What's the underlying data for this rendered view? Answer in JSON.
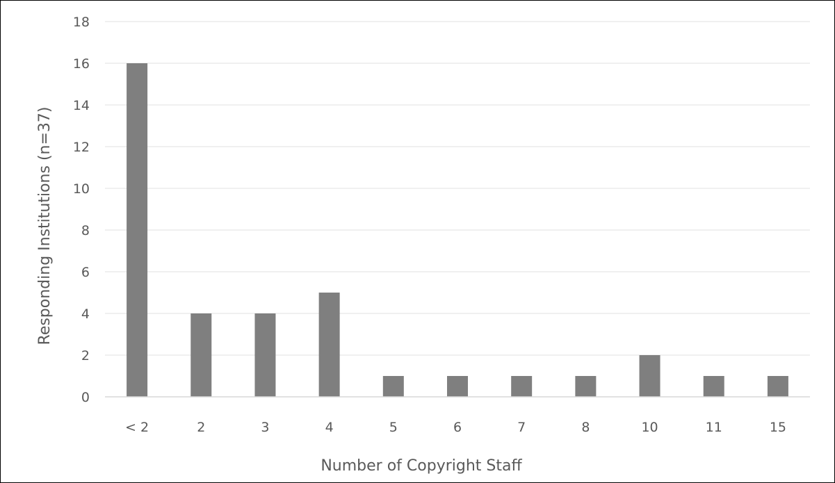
{
  "chart_data": {
    "type": "bar",
    "title": "",
    "xlabel": "Number of Copyright Staff",
    "ylabel": "Responding Institutions (n=37)",
    "categories": [
      "< 2",
      "2",
      "3",
      "4",
      "5",
      "6",
      "7",
      "8",
      "10",
      "11",
      "15"
    ],
    "values": [
      16,
      4,
      4,
      5,
      1,
      1,
      1,
      1,
      2,
      1,
      1
    ],
    "ylim": [
      0,
      18
    ],
    "yticks": [
      0,
      2,
      4,
      6,
      8,
      10,
      12,
      14,
      16,
      18
    ],
    "grid": true,
    "legend": "none",
    "colors": {
      "bar": "#7f7f7f",
      "grid": "#ececec",
      "axis": "#d9d9d9",
      "text": "#595959"
    }
  }
}
